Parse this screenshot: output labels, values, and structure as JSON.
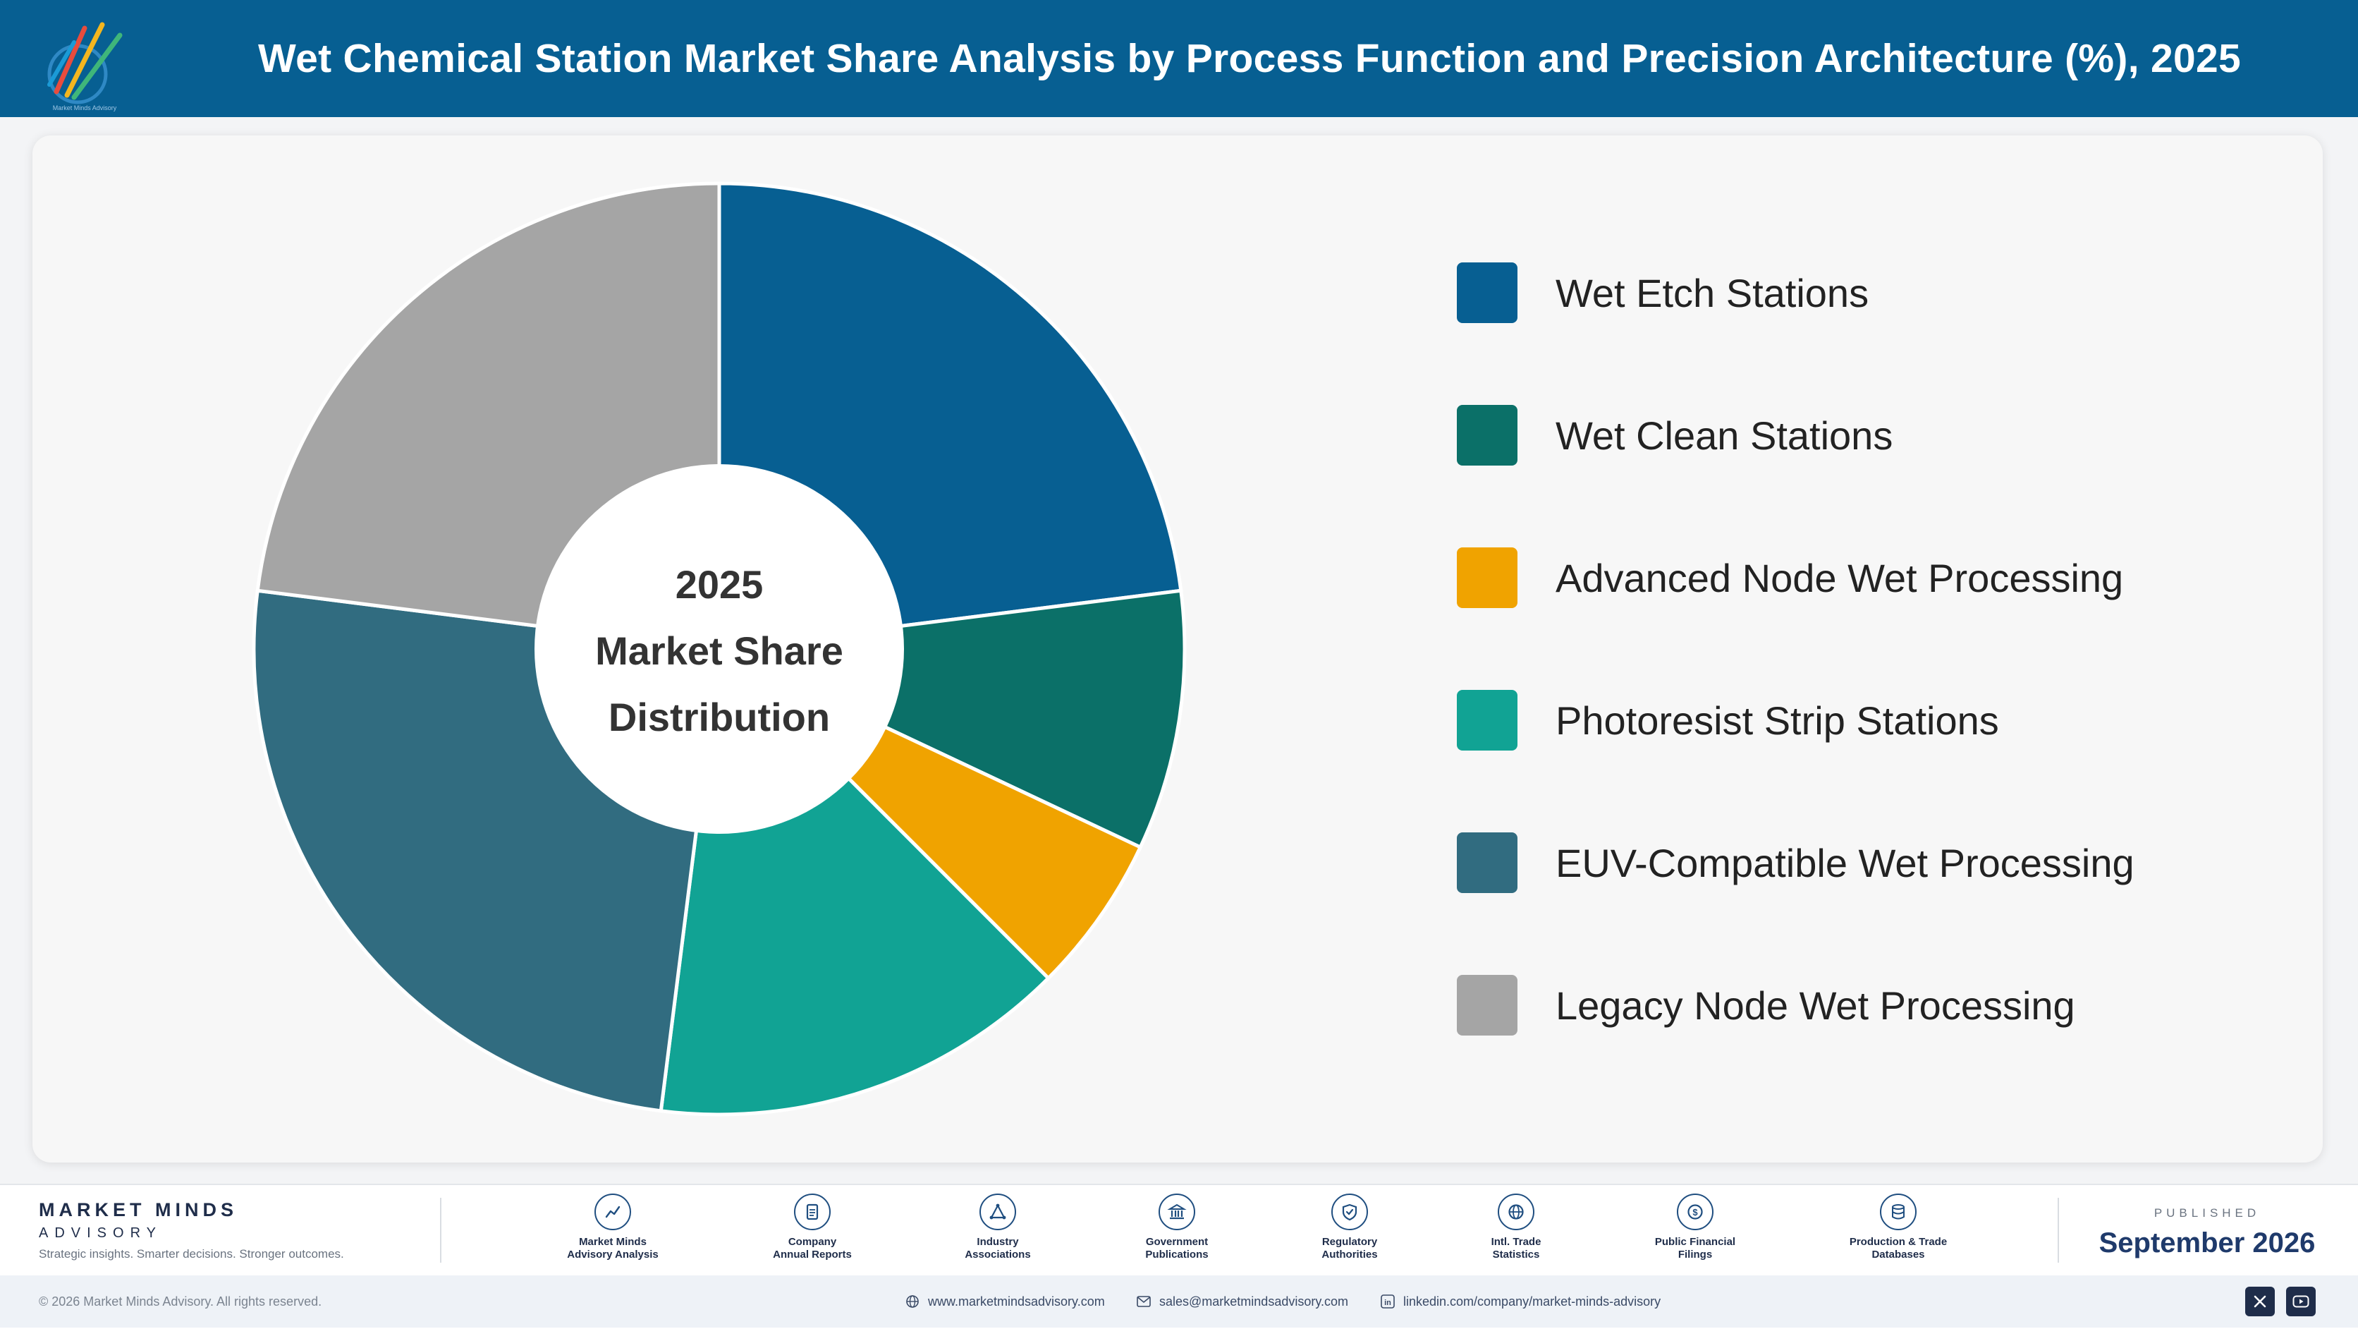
{
  "header": {
    "title": "Wet Chemical Station Market Share Analysis by Process Function and Precision Architecture (%), 2025",
    "logo_icon": "market-minds-logo-icon"
  },
  "chart_data": {
    "type": "pie",
    "style": "donut",
    "center_label": [
      "2025",
      "Market Share",
      "Distribution"
    ],
    "categories": [
      "Wet Etch Stations",
      "Wet Clean Stations",
      "Advanced Node Wet Processing",
      "Photoresist Strip Stations",
      "EUV-Compatible Wet Processing",
      "Legacy Node Wet Processing"
    ],
    "values": [
      23.0,
      9.0,
      5.5,
      14.5,
      25.0,
      23.0
    ],
    "colors": [
      "#075f92",
      "#0b7068",
      "#f0a300",
      "#11a394",
      "#316c80",
      "#a5a5a5"
    ],
    "legend_position": "right"
  },
  "footer": {
    "brand_name": "MARKET MINDS",
    "brand_sub": "ADVISORY",
    "tagline": "Strategic insights. Smarter decisions. Stronger outcomes.",
    "sources": [
      {
        "line1": "Market Minds",
        "line2": "Advisory Analysis",
        "icon": "trend-chart-icon"
      },
      {
        "line1": "Company",
        "line2": "Annual Reports",
        "icon": "document-icon"
      },
      {
        "line1": "Industry",
        "line2": "Associations",
        "icon": "network-icon"
      },
      {
        "line1": "Government",
        "line2": "Publications",
        "icon": "government-building-icon"
      },
      {
        "line1": "Regulatory",
        "line2": "Authorities",
        "icon": "shield-check-icon"
      },
      {
        "line1": "Intl. Trade",
        "line2": "Statistics",
        "icon": "globe-icon"
      },
      {
        "line1": "Public Financial",
        "line2": "Filings",
        "icon": "dollar-coin-icon"
      },
      {
        "line1": "Production & Trade",
        "line2": "Databases",
        "icon": "database-icon"
      }
    ],
    "published_label": "PUBLISHED",
    "published_date": "September 2026"
  },
  "bottom_bar": {
    "copyright": "© 2026 Market Minds Advisory. All rights reserved.",
    "website": "www.marketmindsadvisory.com",
    "email": "sales@marketmindsadvisory.com",
    "linkedin": "linkedin.com/company/market-minds-advisory",
    "social_icons": [
      "x-icon",
      "youtube-icon"
    ]
  }
}
